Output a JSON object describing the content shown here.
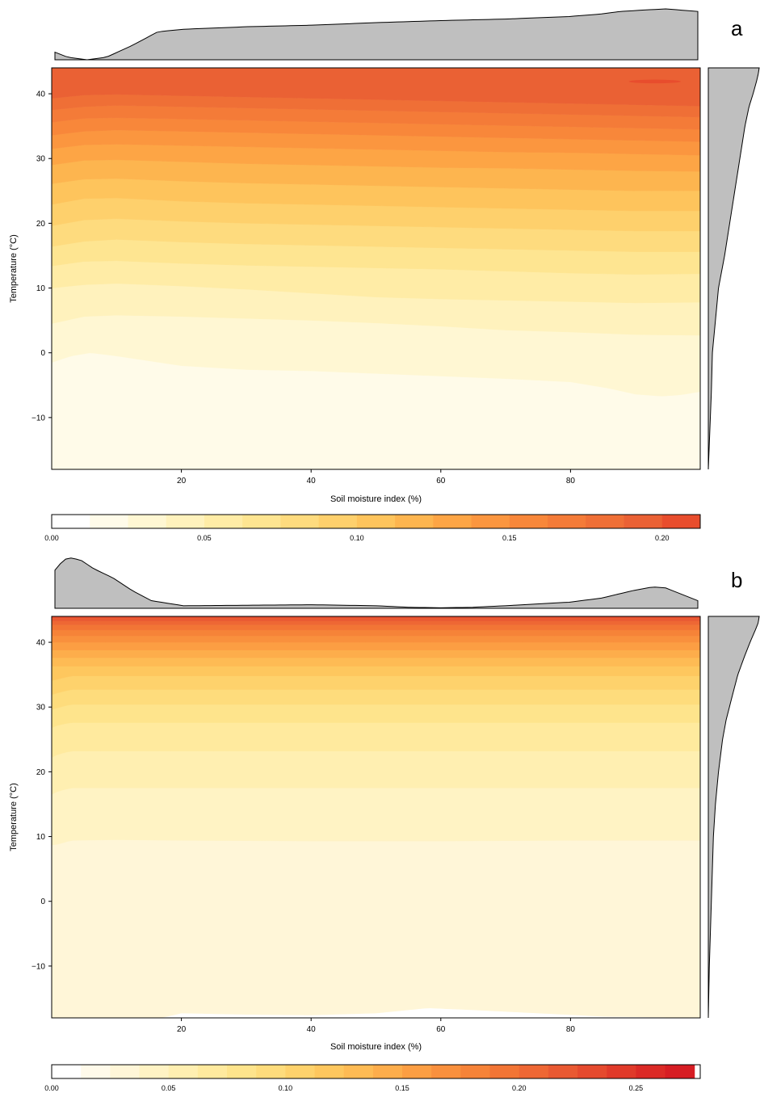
{
  "chart_data": [
    {
      "panel_label": "a",
      "type": "heatmap",
      "subtype": "filled-contour with marginal density curves",
      "xlabel": "Soil moisture index (%)",
      "ylabel": "Temperature (°C)",
      "xlim": [
        0,
        100
      ],
      "ylim": [
        -18,
        44
      ],
      "x_ticks": [
        20,
        40,
        60,
        80
      ],
      "y_ticks": [
        -10,
        0,
        10,
        20,
        30,
        40
      ],
      "levels": [
        0.0,
        0.0125,
        0.025,
        0.0375,
        0.05,
        0.0625,
        0.075,
        0.0875,
        0.1,
        0.1125,
        0.125,
        0.1375,
        0.15,
        0.1625,
        0.175,
        0.1875,
        0.2,
        0.2125
      ],
      "colorbar_ticks": [
        "0.00",
        "0.05",
        "0.10",
        "0.15",
        "0.20"
      ],
      "colorbar_tick_values": [
        0.0,
        0.05,
        0.1,
        0.15,
        0.2
      ],
      "colors": [
        "#ffffff",
        "#fffbe9",
        "#fff7d3",
        "#fff2bd",
        "#ffeca6",
        "#fee591",
        "#fedb7e",
        "#fed06c",
        "#fec45c",
        "#fdb54f",
        "#fda545",
        "#fb963f",
        "#f8873a",
        "#f47b38",
        "#ef6f36",
        "#ea6134",
        "#e84d2d"
      ],
      "contour_boundaries": [
        {
          "level": 0.0125,
          "x": [
            0,
            3,
            6,
            10,
            20,
            30,
            40,
            50,
            60,
            70,
            80,
            86,
            90,
            94,
            97,
            100
          ],
          "y": [
            -1.5,
            -0.5,
            0,
            -0.5,
            -2,
            -2.6,
            -2.8,
            -3.2,
            -3.6,
            -4,
            -4.5,
            -5.5,
            -6.4,
            -6.7,
            -6.5,
            -6
          ]
        },
        {
          "level": 0.025,
          "x": [
            0,
            5,
            10,
            20,
            30,
            40,
            50,
            60,
            70,
            80,
            90,
            100
          ],
          "y": [
            4.5,
            5.6,
            5.8,
            5.6,
            5.3,
            5,
            4.6,
            4.1,
            3.5,
            3.2,
            2.8,
            2.7
          ]
        },
        {
          "level": 0.0375,
          "x": [
            0,
            5,
            10,
            20,
            30,
            40,
            50,
            60,
            70,
            80,
            90,
            100
          ],
          "y": [
            10,
            10.5,
            10.7,
            10.3,
            9.8,
            9.2,
            8.6,
            8.3,
            8.1,
            7.9,
            7.7,
            7.8
          ]
        },
        {
          "level": 0.05,
          "x": [
            0,
            5,
            10,
            20,
            30,
            40,
            50,
            60,
            70,
            80,
            90,
            100
          ],
          "y": [
            13.4,
            14.1,
            14.2,
            13.8,
            13.5,
            13.3,
            13.1,
            12.9,
            12.6,
            12.3,
            12.1,
            12.2
          ]
        },
        {
          "level": 0.0625,
          "x": [
            0,
            5,
            10,
            20,
            30,
            40,
            50,
            60,
            70,
            80,
            90,
            100
          ],
          "y": [
            16.4,
            17.2,
            17.5,
            17.1,
            16.8,
            16.6,
            16.4,
            16.2,
            16,
            15.8,
            15.6,
            15.6
          ]
        },
        {
          "level": 0.075,
          "x": [
            0,
            5,
            10,
            20,
            30,
            40,
            50,
            60,
            70,
            80,
            90,
            100
          ],
          "y": [
            19.6,
            20.5,
            20.7,
            20.3,
            20,
            19.8,
            19.6,
            19.4,
            19.2,
            19,
            18.8,
            18.8
          ]
        },
        {
          "level": 0.0875,
          "x": [
            0,
            5,
            10,
            20,
            30,
            40,
            50,
            60,
            70,
            80,
            90,
            100
          ],
          "y": [
            22.9,
            23.8,
            23.9,
            23.4,
            23.1,
            22.9,
            22.7,
            22.5,
            22.3,
            22.1,
            21.9,
            21.9
          ]
        },
        {
          "level": 0.1,
          "x": [
            0,
            5,
            10,
            20,
            30,
            40,
            50,
            60,
            70,
            80,
            90,
            100
          ],
          "y": [
            26.1,
            26.8,
            26.9,
            26.5,
            26.2,
            26,
            25.8,
            25.6,
            25.4,
            25.2,
            25,
            25
          ]
        },
        {
          "level": 0.1125,
          "x": [
            0,
            5,
            10,
            20,
            30,
            40,
            50,
            60,
            70,
            80,
            90,
            100
          ],
          "y": [
            29,
            29.7,
            29.8,
            29.5,
            29.2,
            29,
            28.8,
            28.6,
            28.5,
            28.3,
            28.1,
            28
          ]
        },
        {
          "level": 0.125,
          "x": [
            0,
            5,
            10,
            20,
            30,
            40,
            50,
            60,
            70,
            80,
            90,
            100
          ],
          "y": [
            31.5,
            32.1,
            32.2,
            32,
            31.8,
            31.6,
            31.4,
            31.2,
            31,
            30.9,
            30.7,
            30.5
          ]
        },
        {
          "level": 0.1375,
          "x": [
            0,
            5,
            10,
            20,
            30,
            40,
            50,
            60,
            70,
            80,
            90,
            100
          ],
          "y": [
            33.6,
            34.2,
            34.4,
            34.2,
            34,
            33.8,
            33.6,
            33.4,
            33.2,
            33,
            32.8,
            32.6
          ]
        },
        {
          "level": 0.15,
          "x": [
            0,
            5,
            10,
            20,
            30,
            40,
            50,
            60,
            70,
            80,
            90,
            100
          ],
          "y": [
            35.6,
            36.2,
            36.3,
            36.1,
            35.9,
            35.7,
            35.5,
            35.3,
            35.1,
            34.9,
            34.7,
            34.5
          ]
        },
        {
          "level": 0.1625,
          "x": [
            0,
            5,
            10,
            20,
            30,
            40,
            50,
            60,
            70,
            80,
            90,
            100
          ],
          "y": [
            37.5,
            38,
            38.2,
            38,
            37.8,
            37.6,
            37.4,
            37.2,
            37,
            36.8,
            36.6,
            36.4
          ]
        },
        {
          "level": 0.175,
          "x": [
            0,
            5,
            10,
            20,
            30,
            40,
            50,
            60,
            70,
            80,
            90,
            100
          ],
          "y": [
            39.3,
            39.8,
            39.9,
            39.7,
            39.5,
            39.3,
            39.1,
            38.9,
            38.7,
            38.5,
            38.3,
            38.1
          ]
        },
        {
          "level": 0.1875,
          "x": [
            0,
            100
          ],
          "y": [
            44,
            44
          ]
        }
      ],
      "hotspot": {
        "level": 0.2,
        "x_range": [
          89,
          97
        ],
        "y": 41.9
      },
      "top_marginal_density": {
        "x": [
          0,
          2,
          5,
          8,
          12,
          16,
          20,
          30,
          40,
          50,
          60,
          70,
          80,
          85,
          88,
          92,
          95,
          97,
          100
        ],
        "density": [
          0.15,
          0.05,
          0,
          0.05,
          0.28,
          0.55,
          0.6,
          0.65,
          0.68,
          0.73,
          0.77,
          0.8,
          0.85,
          0.9,
          0.95,
          0.98,
          1,
          0.98,
          0.95
        ]
      },
      "right_marginal_density": {
        "y": [
          -18,
          -12,
          -6,
          0,
          5,
          10,
          15,
          20,
          25,
          30,
          35,
          38,
          40,
          42,
          43,
          44
        ],
        "density": [
          0,
          0.03,
          0.06,
          0.08,
          0.14,
          0.2,
          0.32,
          0.42,
          0.52,
          0.62,
          0.72,
          0.8,
          0.88,
          0.95,
          0.98,
          1
        ]
      }
    },
    {
      "panel_label": "b",
      "type": "heatmap",
      "subtype": "filled-contour with marginal density curves",
      "xlabel": "Soil moisture index (%)",
      "ylabel": "Temperature (°C)",
      "xlim": [
        0,
        100
      ],
      "ylim": [
        -18,
        44
      ],
      "x_ticks": [
        20,
        40,
        60,
        80
      ],
      "y_ticks": [
        -10,
        0,
        10,
        20,
        30,
        40
      ],
      "levels": [
        0.0,
        0.0125,
        0.025,
        0.0375,
        0.05,
        0.0625,
        0.075,
        0.0875,
        0.1,
        0.1125,
        0.125,
        0.1375,
        0.15,
        0.1625,
        0.175,
        0.1875,
        0.2,
        0.2125,
        0.225,
        0.2375,
        0.25,
        0.2625,
        0.275
      ],
      "colorbar_ticks": [
        "0.00",
        "0.05",
        "0.10",
        "0.15",
        "0.20",
        "0.25"
      ],
      "colorbar_tick_values": [
        0.0,
        0.05,
        0.1,
        0.15,
        0.2,
        0.25
      ],
      "colors": [
        "#ffffff",
        "#fffaea",
        "#fff6d8",
        "#fff3c4",
        "#ffefb1",
        "#ffea9e",
        "#fee48c",
        "#fedc7c",
        "#fed26c",
        "#fec75e",
        "#febb54",
        "#fdad4b",
        "#fc9e43",
        "#f9903d",
        "#f68338",
        "#f27535",
        "#ee6734",
        "#e95932",
        "#e54a2e",
        "#e03a2a",
        "#db2a26",
        "#d61d23"
      ],
      "contour_boundaries": [
        {
          "level": 0.0125,
          "x": [
            0,
            17,
            20,
            30,
            40,
            50,
            58,
            65,
            75,
            85,
            100
          ],
          "y": [
            -18,
            -18,
            -17.3,
            -17.5,
            -17.6,
            -17.3,
            -16.5,
            -16.8,
            -17.3,
            -17.8,
            -18
          ]
        },
        {
          "level": 0.025,
          "x": [
            0,
            1,
            3,
            10,
            20,
            40,
            60,
            80,
            100
          ],
          "y": [
            8.7,
            8.8,
            9.4,
            9.5,
            9.4,
            9.3,
            9.3,
            9.4,
            9.4
          ]
        },
        {
          "level": 0.0375,
          "x": [
            0,
            1,
            3,
            10,
            20,
            40,
            60,
            80,
            100
          ],
          "y": [
            16.5,
            17,
            17.5,
            17.5,
            17.5,
            17.5,
            17.5,
            17.5,
            17.5
          ]
        },
        {
          "level": 0.05,
          "x": [
            0,
            1,
            3,
            10,
            20,
            40,
            60,
            80,
            100
          ],
          "y": [
            22.2,
            22.7,
            23.2,
            23.2,
            23.2,
            23.2,
            23.2,
            23.2,
            23.2
          ]
        },
        {
          "level": 0.0625,
          "x": [
            0,
            1,
            3,
            10,
            20,
            40,
            60,
            80,
            100
          ],
          "y": [
            26.8,
            27.2,
            27.6,
            27.6,
            27.6,
            27.6,
            27.6,
            27.6,
            27.6
          ]
        },
        {
          "level": 0.075,
          "x": [
            0,
            1,
            3,
            10,
            20,
            40,
            60,
            80,
            100
          ],
          "y": [
            29.6,
            29.9,
            30.4,
            30.4,
            30.4,
            30.4,
            30.4,
            30.4,
            30.4
          ]
        },
        {
          "level": 0.0875,
          "x": [
            0,
            1,
            3,
            10,
            20,
            40,
            60,
            80,
            100
          ],
          "y": [
            31.9,
            32.2,
            32.7,
            32.7,
            32.7,
            32.7,
            32.7,
            32.7,
            32.7
          ]
        },
        {
          "level": 0.1,
          "x": [
            0,
            1,
            3,
            10,
            20,
            40,
            60,
            80,
            100
          ],
          "y": [
            34.1,
            34.3,
            34.8,
            34.8,
            34.8,
            34.8,
            34.8,
            34.8,
            34.8
          ]
        },
        {
          "level": 0.1125,
          "x": [
            0,
            100
          ],
          "y": [
            36.3,
            36.3
          ]
        },
        {
          "level": 0.125,
          "x": [
            0,
            100
          ],
          "y": [
            37.6,
            37.6
          ]
        },
        {
          "level": 0.1375,
          "x": [
            0,
            100
          ],
          "y": [
            38.8,
            38.8
          ]
        },
        {
          "level": 0.15,
          "x": [
            0,
            100
          ],
          "y": [
            40,
            40
          ]
        },
        {
          "level": 0.1625,
          "x": [
            0,
            100
          ],
          "y": [
            41,
            41
          ]
        },
        {
          "level": 0.175,
          "x": [
            0,
            100
          ],
          "y": [
            41.9,
            41.9
          ]
        },
        {
          "level": 0.1875,
          "x": [
            0,
            100
          ],
          "y": [
            42.7,
            42.7
          ]
        },
        {
          "level": 0.2,
          "x": [
            0,
            100
          ],
          "y": [
            43.3,
            43.3
          ]
        },
        {
          "level": 0.2125,
          "x": [
            0,
            100
          ],
          "y": [
            43.8,
            43.8
          ]
        }
      ],
      "top_marginal_density": {
        "x": [
          0,
          1,
          2,
          4,
          6,
          9,
          12,
          15,
          20,
          30,
          40,
          50,
          55,
          60,
          65,
          70,
          80,
          85,
          90,
          93,
          95,
          97,
          100
        ],
        "density": [
          0.75,
          0.9,
          1,
          0.95,
          0.78,
          0.6,
          0.35,
          0.15,
          0.05,
          0.06,
          0.07,
          0.05,
          0.02,
          0.01,
          0.02,
          0.05,
          0.12,
          0.2,
          0.35,
          0.42,
          0.4,
          0.3,
          0.15
        ]
      },
      "right_marginal_density": {
        "y": [
          -18,
          -10,
          -5,
          0,
          5,
          10,
          15,
          20,
          25,
          28,
          32,
          35,
          38,
          40,
          42,
          43,
          44
        ],
        "density": [
          0,
          0.02,
          0.04,
          0.06,
          0.08,
          0.1,
          0.14,
          0.2,
          0.28,
          0.35,
          0.48,
          0.58,
          0.72,
          0.82,
          0.93,
          0.98,
          1
        ]
      }
    }
  ]
}
